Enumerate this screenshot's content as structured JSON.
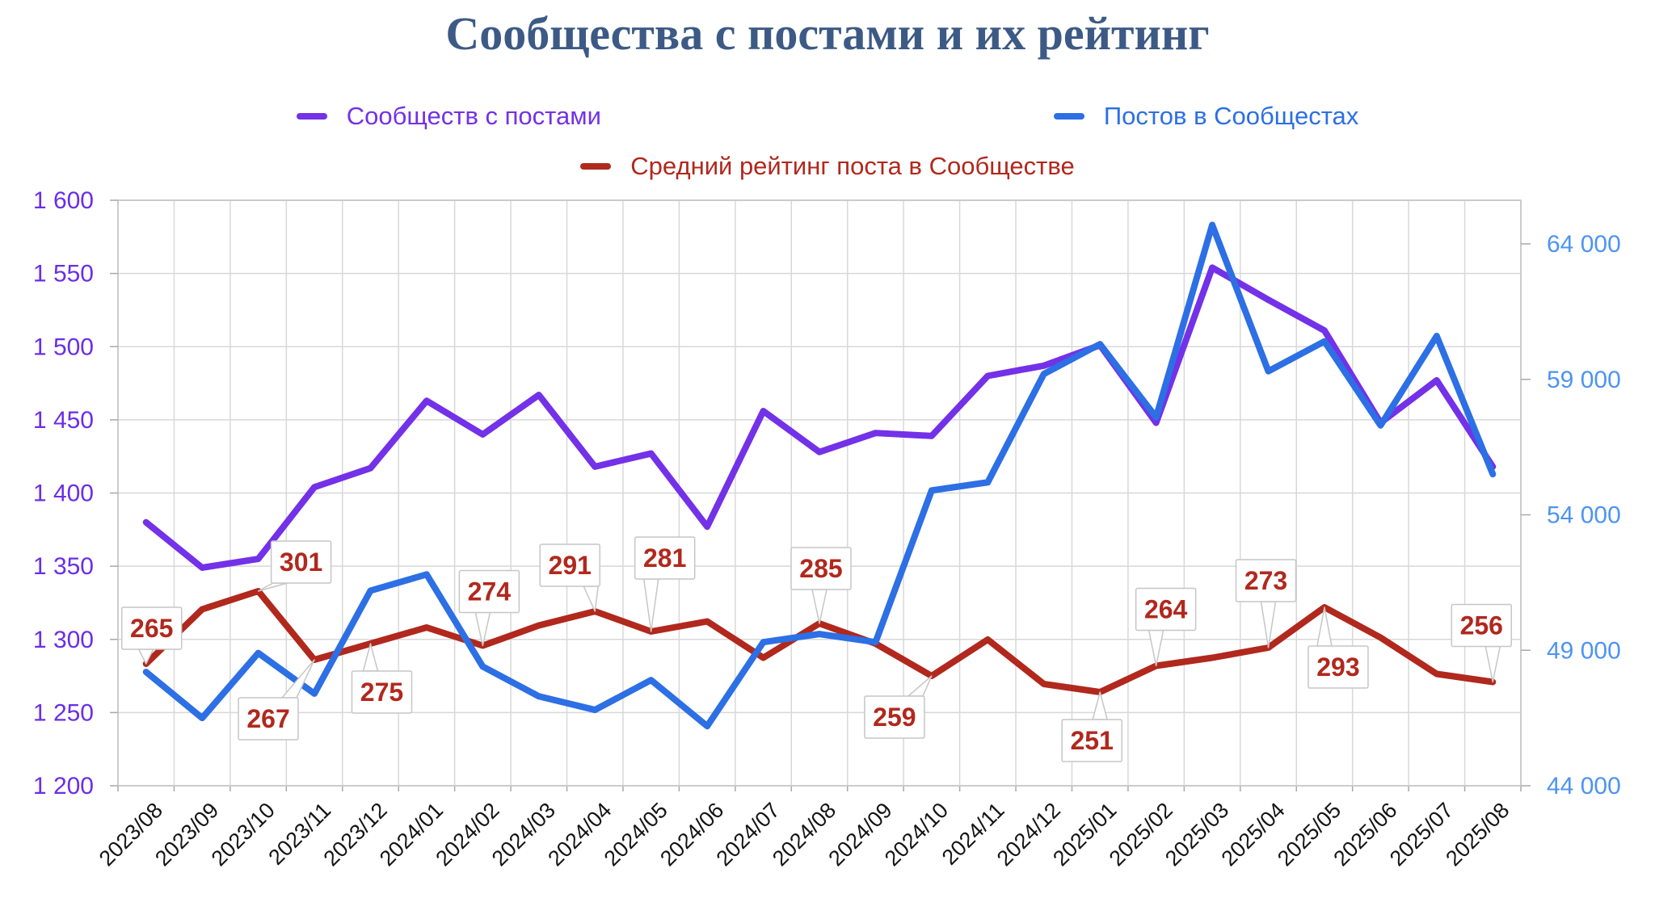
{
  "title": "Сообщества с постами и их рейтинг",
  "legend": [
    {
      "label": "Сообществ с постами",
      "color": "#7331E8"
    },
    {
      "label": "Постов в Сообщестах",
      "color": "#2D6FE4"
    },
    {
      "label": "Средний рейтинг поста в Сообществе",
      "color": "#B1281D"
    }
  ],
  "chart_data": {
    "type": "line",
    "title": "Сообщества с постами и их рейтинг",
    "grid": true,
    "legend_position": "top",
    "categories": [
      "2023/08",
      "2023/09",
      "2023/10",
      "2023/11",
      "2023/12",
      "2024/01",
      "2024/02",
      "2024/03",
      "2024/04",
      "2024/05",
      "2024/06",
      "2024/07",
      "2024/08",
      "2024/09",
      "2024/10",
      "2024/11",
      "2024/12",
      "2025/01",
      "2025/02",
      "2025/03",
      "2025/04",
      "2025/05",
      "2025/06",
      "2025/07",
      "2025/08"
    ],
    "series": [
      {
        "name": "Сообществ с постами",
        "axis": "left",
        "color": "#7331E8",
        "values": [
          1380,
          1349,
          1355,
          1404,
          1417,
          1463,
          1440,
          1467,
          1418,
          1427,
          1377,
          1456,
          1428,
          1441,
          1439,
          1480,
          1487,
          1501,
          1448,
          1554,
          1532,
          1511,
          1448,
          1477,
          1418
        ]
      },
      {
        "name": "Постов в Сообщестах",
        "axis": "right",
        "color": "#2D6FE4",
        "values": [
          48200,
          46500,
          48900,
          47400,
          51200,
          51800,
          48400,
          47300,
          46800,
          47900,
          46200,
          49300,
          49600,
          49300,
          54900,
          55200,
          59200,
          60300,
          57600,
          64700,
          59300,
          60400,
          57300,
          60600,
          55500
        ]
      },
      {
        "name": "Средний рейтинг поста в Сообществе",
        "axis": "hidden",
        "color": "#B1281D",
        "values": [
          265,
          292,
          301,
          267,
          275,
          283,
          274,
          284,
          291,
          281,
          286,
          268,
          285,
          275,
          259,
          277,
          255,
          251,
          264,
          268,
          273,
          293,
          278,
          260,
          256
        ],
        "labeled_points": [
          0,
          2,
          3,
          4,
          6,
          8,
          9,
          12,
          14,
          17,
          18,
          20,
          21,
          24
        ]
      }
    ],
    "left_axis": {
      "ticks": [
        1200,
        1250,
        1300,
        1350,
        1400,
        1450,
        1500,
        1550,
        1600
      ],
      "range": [
        1200,
        1600
      ],
      "color": "#6A2EE8"
    },
    "right_axis": {
      "ticks": [
        44000,
        49000,
        54000,
        59000,
        64000
      ],
      "range": [
        44000,
        65600
      ],
      "color": "#4D94F0"
    },
    "x_axis": {
      "color": "#141414"
    },
    "grid_color": "#D8D8D8",
    "border_color": "#C8C8C8",
    "callout": {
      "fill": "#ffffff",
      "stroke": "#C6C6C6",
      "text_color": "#B1281D"
    }
  }
}
